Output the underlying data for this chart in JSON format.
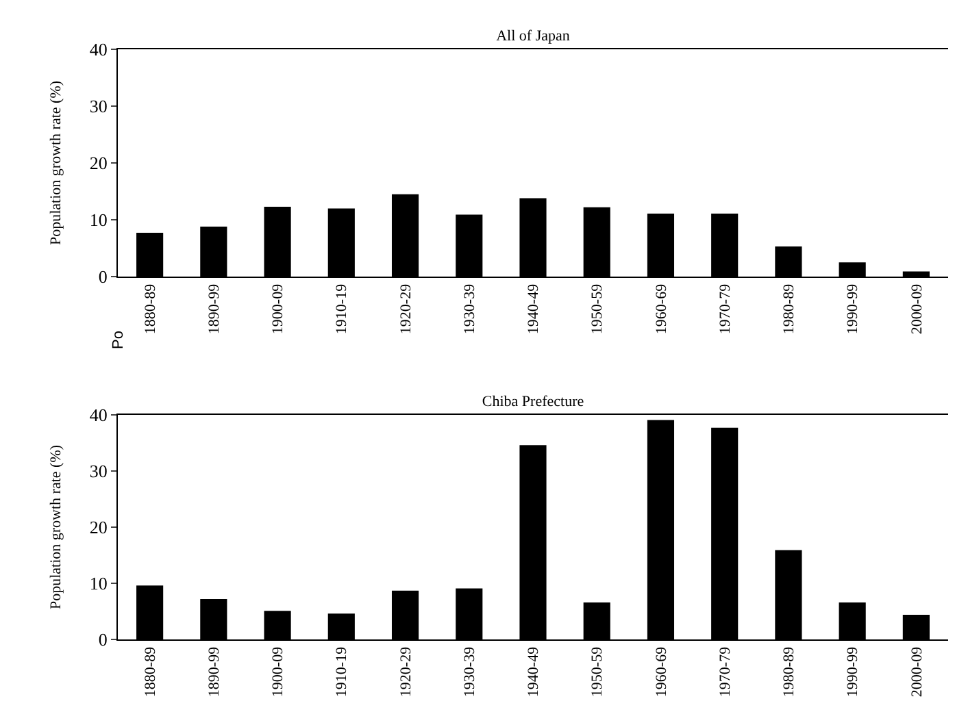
{
  "chart_data": [
    {
      "type": "bar",
      "title": "All of Japan",
      "ylabel": "Population growth rate (%)",
      "categories": [
        "1880-89",
        "1890-99",
        "1900-09",
        "1910-19",
        "1920-29",
        "1930-39",
        "1940-49",
        "1950-59",
        "1960-69",
        "1970-79",
        "1980-89",
        "1990-99",
        "2000-09"
      ],
      "values": [
        7.7,
        8.8,
        12.3,
        12.0,
        14.5,
        10.9,
        13.8,
        12.2,
        11.1,
        11.1,
        5.3,
        2.5,
        0.9
      ],
      "color": "#000000",
      "ylim": [
        0,
        40
      ],
      "yticks": [
        0,
        10,
        20,
        30,
        40
      ],
      "annotations": [
        "Po"
      ]
    },
    {
      "type": "bar",
      "title": "Chiba Prefecture",
      "ylabel": "Population growth rate (%)",
      "categories": [
        "1880-89",
        "1890-99",
        "1900-09",
        "1910-19",
        "1920-29",
        "1930-39",
        "1940-49",
        "1950-59",
        "1960-69",
        "1970-79",
        "1980-89",
        "1990-99",
        "2000-09"
      ],
      "values": [
        9.6,
        7.2,
        5.1,
        4.6,
        8.7,
        9.1,
        34.6,
        6.6,
        39.1,
        37.7,
        15.9,
        6.6,
        4.4
      ],
      "color": "#000000",
      "ylim": [
        0,
        40
      ],
      "yticks": [
        0,
        10,
        20,
        30,
        40
      ]
    }
  ]
}
